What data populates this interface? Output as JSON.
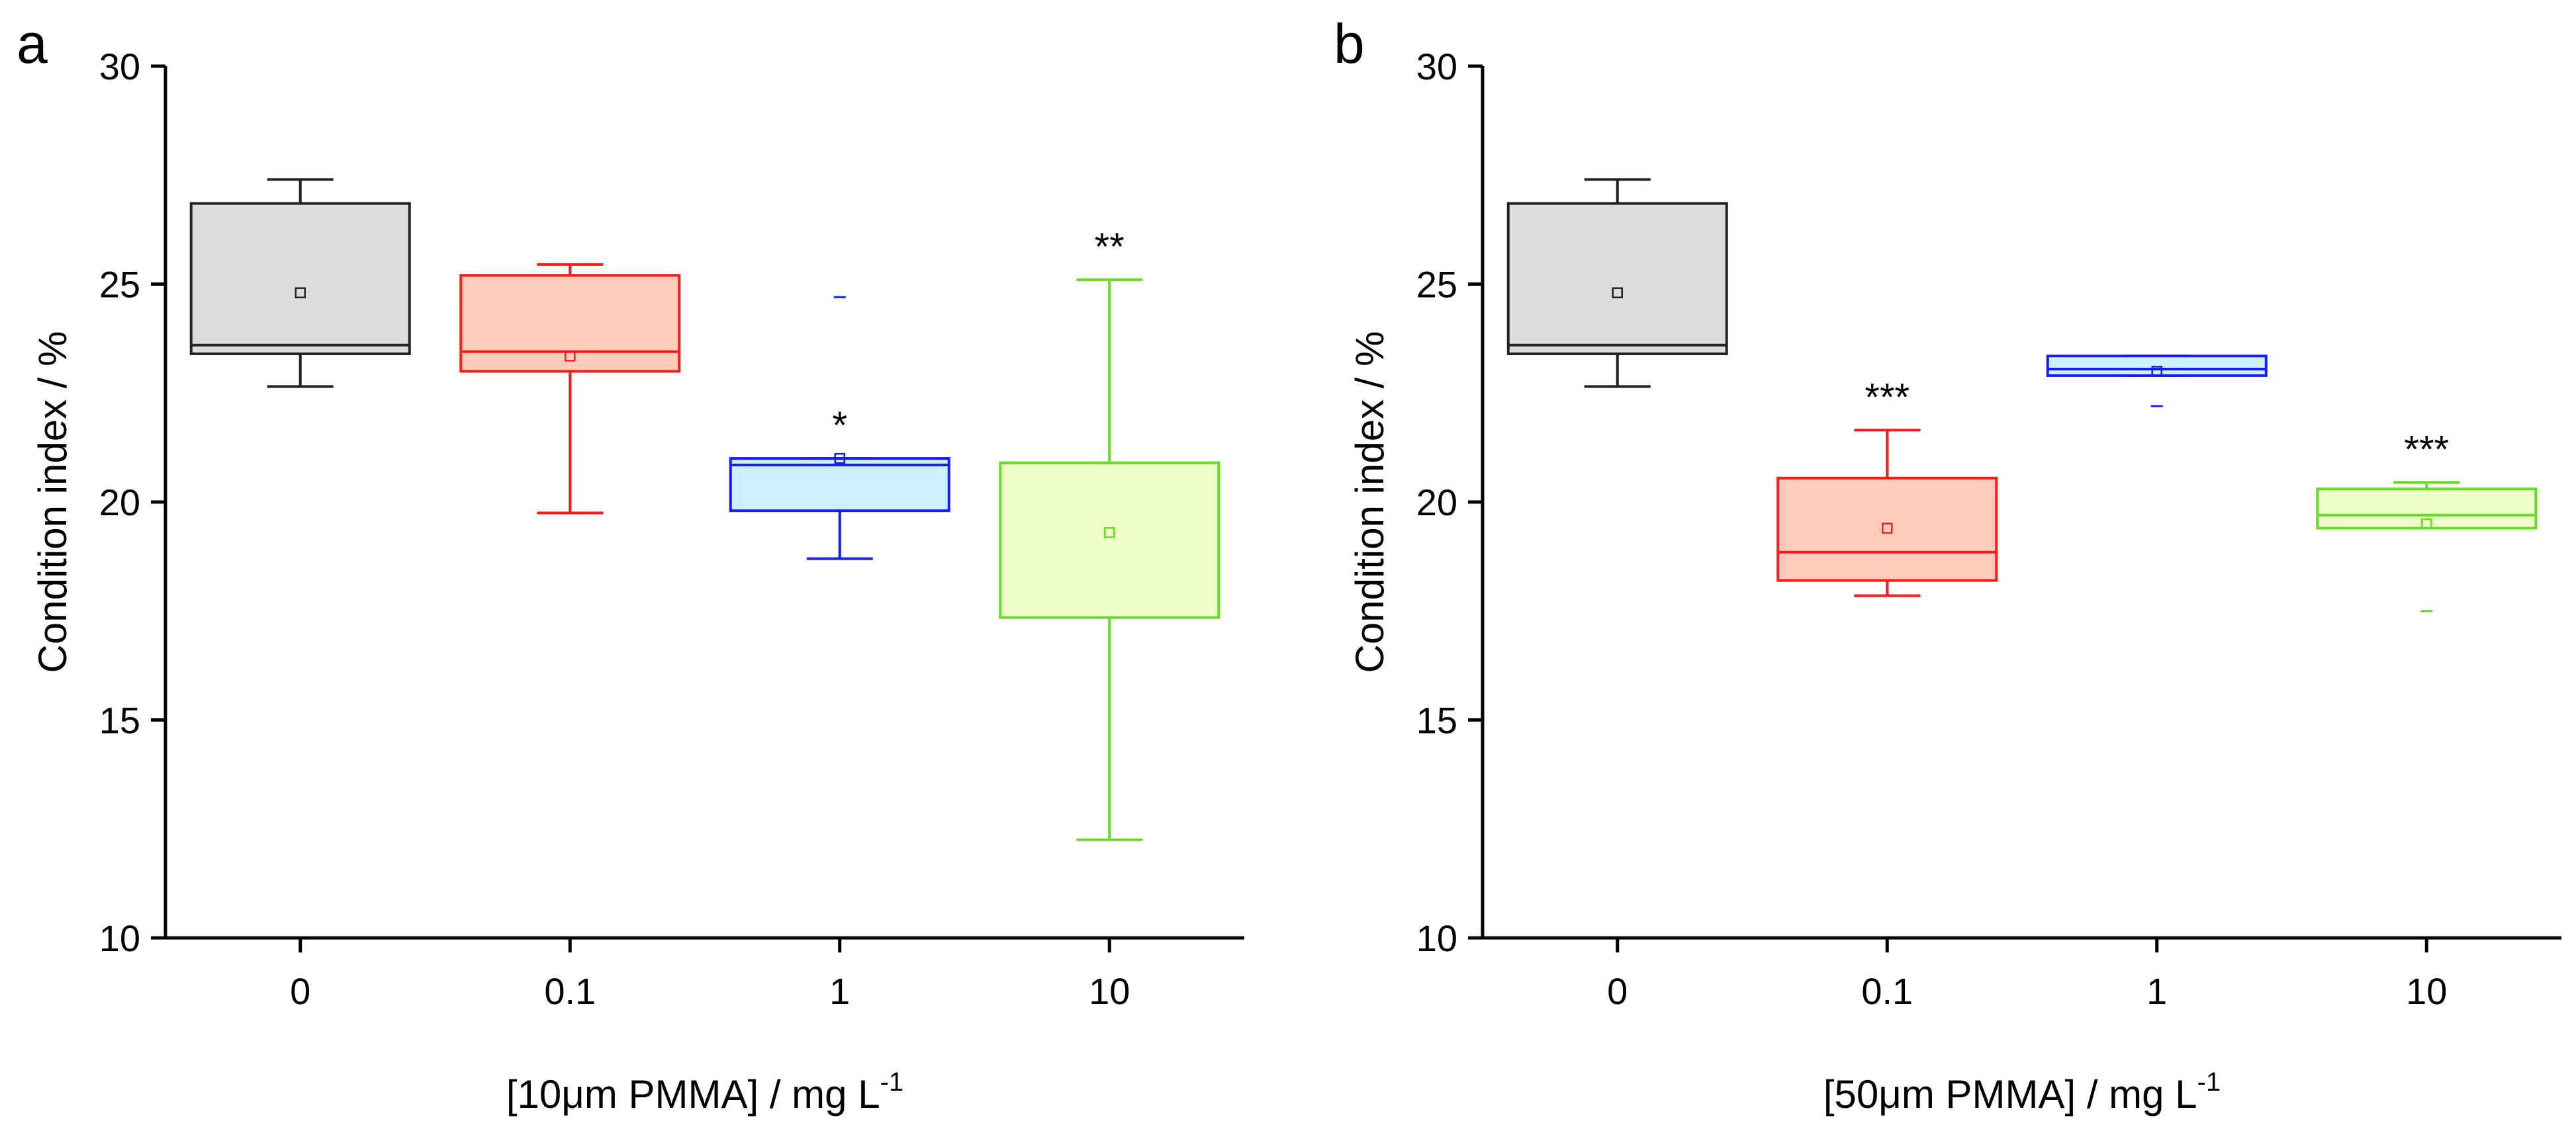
{
  "chart_data": [
    {
      "type": "box",
      "panel_label": "a",
      "xlabel": "[10μm PMMA] / mg L",
      "xlabel_superscript": "-1",
      "ylabel": "Condition index / %",
      "ylim": [
        10,
        30
      ],
      "yticks": [
        10,
        15,
        20,
        25,
        30
      ],
      "categories": [
        "0",
        "0.1",
        "1",
        "10"
      ],
      "boxes": [
        {
          "category": "0",
          "color": "#222222",
          "fill": "#dcdcdc",
          "whisker_low": 22.65,
          "q1": 23.4,
          "median": 23.6,
          "q3": 26.85,
          "whisker_high": 27.4,
          "mean": 24.8,
          "outliers": [],
          "significance": ""
        },
        {
          "category": "0.1",
          "color": "#ff1a1a",
          "fill": "#ffccbb",
          "whisker_low": 19.75,
          "q1": 23.0,
          "median": 23.45,
          "q3": 25.2,
          "whisker_high": 25.45,
          "mean": 23.35,
          "outliers": [],
          "significance": ""
        },
        {
          "category": "1",
          "color": "#1a1aff",
          "fill": "#ccf2ff",
          "whisker_low": 18.7,
          "q1": 19.8,
          "median": 20.85,
          "q3": 21.0,
          "whisker_high": 21.0,
          "mean": 21.0,
          "outliers": [
            24.7
          ],
          "significance": "*"
        },
        {
          "category": "10",
          "color": "#66dd22",
          "fill": "#eeffcc",
          "whisker_low": 12.25,
          "q1": 17.35,
          "median": 20.9,
          "q3": 20.9,
          "whisker_high": 25.1,
          "mean": 19.3,
          "outliers": [],
          "significance": "**"
        }
      ]
    },
    {
      "type": "box",
      "panel_label": "b",
      "xlabel": "[50μm PMMA] / mg L",
      "xlabel_superscript": "-1",
      "ylabel": "Condition index / %",
      "ylim": [
        10,
        30
      ],
      "yticks": [
        10,
        15,
        20,
        25,
        30
      ],
      "categories": [
        "0",
        "0.1",
        "1",
        "10"
      ],
      "boxes": [
        {
          "category": "0",
          "color": "#222222",
          "fill": "#dcdcdc",
          "whisker_low": 22.65,
          "q1": 23.4,
          "median": 23.6,
          "q3": 26.85,
          "whisker_high": 27.4,
          "mean": 24.8,
          "outliers": [],
          "significance": ""
        },
        {
          "category": "0.1",
          "color": "#ff1a1a",
          "fill": "#ffccbb",
          "whisker_low": 17.85,
          "q1": 18.2,
          "median": 18.85,
          "q3": 20.55,
          "whisker_high": 21.65,
          "mean": 19.4,
          "outliers": [],
          "significance": "***"
        },
        {
          "category": "1",
          "color": "#1a1aff",
          "fill": "#ccf2ff",
          "whisker_low": 22.9,
          "q1": 22.9,
          "median": 23.05,
          "q3": 23.35,
          "whisker_high": 23.35,
          "mean": 23.0,
          "outliers": [
            22.2
          ],
          "significance": ""
        },
        {
          "category": "10",
          "color": "#66dd22",
          "fill": "#eeffcc",
          "whisker_low": 19.4,
          "q1": 19.4,
          "median": 19.7,
          "q3": 20.3,
          "whisker_high": 20.45,
          "mean": 19.5,
          "outliers": [
            17.5
          ],
          "significance": "***"
        }
      ]
    }
  ]
}
